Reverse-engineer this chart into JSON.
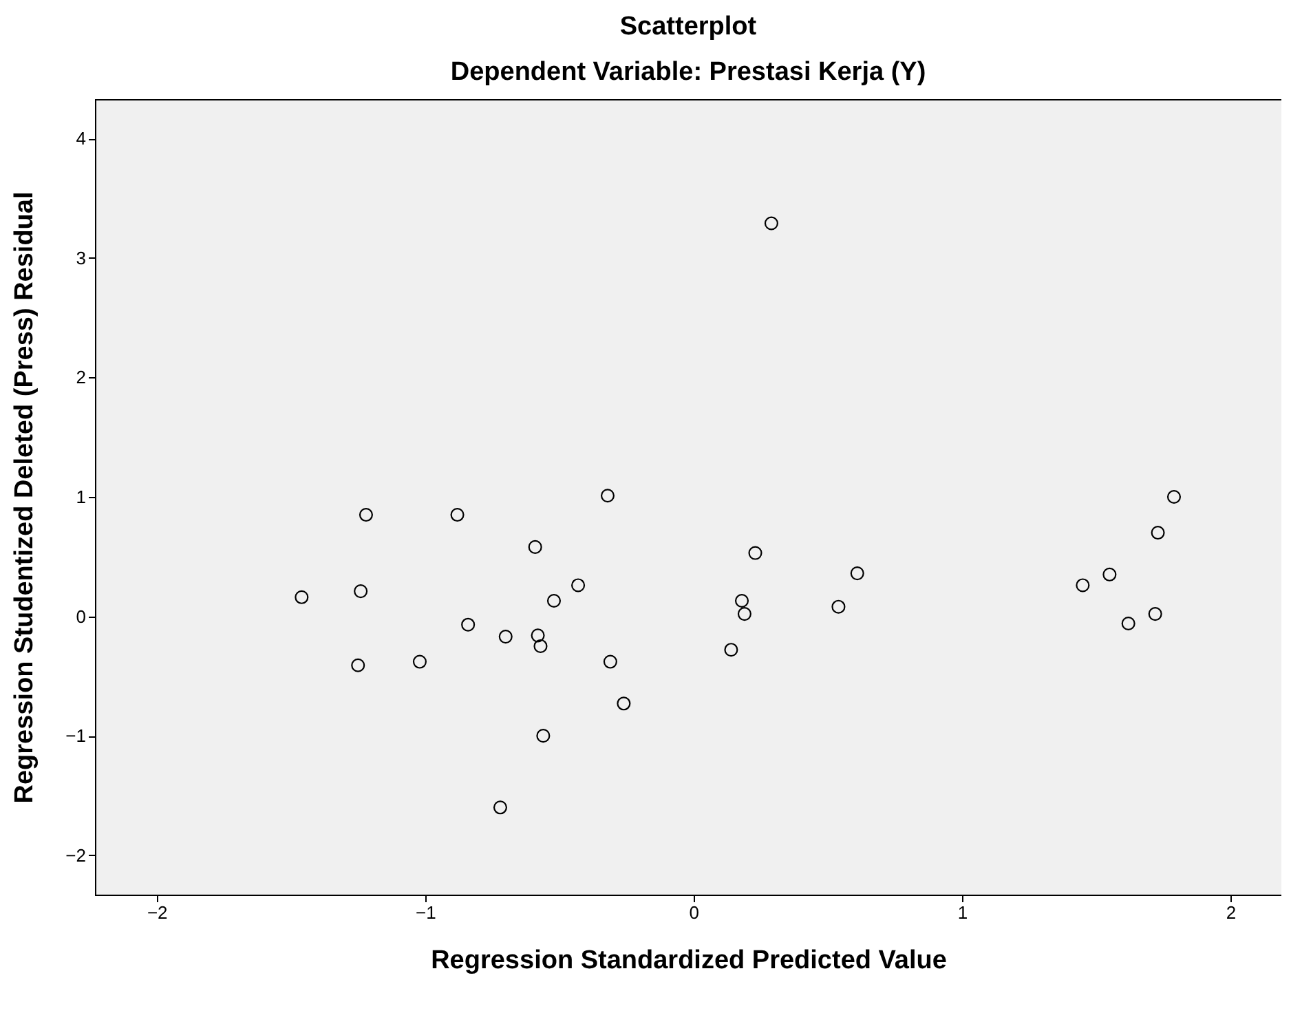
{
  "chart_data": {
    "type": "scatter",
    "title": "Scatterplot",
    "subtitle": "Dependent Variable: Prestasi Kerja (Y)",
    "xlabel": "Regression Standardized Predicted Value",
    "ylabel": "Regression Studentized Deleted (Press) Residual",
    "x": [
      -1.46,
      -1.22,
      -1.24,
      -1.25,
      -1.02,
      -0.88,
      -0.84,
      -0.7,
      -0.59,
      -0.58,
      -0.57,
      -0.52,
      -0.56,
      -0.72,
      -0.43,
      -0.32,
      -0.31,
      -0.26,
      0.14,
      0.18,
      0.19,
      0.23,
      0.29,
      0.54,
      0.61,
      1.45,
      1.55,
      1.62,
      1.72,
      1.73,
      1.79
    ],
    "values": [
      0.16,
      0.85,
      0.21,
      -0.41,
      -0.38,
      0.85,
      -0.07,
      -0.17,
      0.58,
      -0.16,
      -0.25,
      0.13,
      -1.0,
      -1.6,
      0.26,
      1.01,
      -0.38,
      -0.73,
      -0.28,
      0.13,
      0.02,
      0.53,
      3.29,
      0.08,
      0.36,
      0.26,
      0.35,
      -0.06,
      0.02,
      0.7,
      1.0
    ],
    "color": "#000000",
    "marker": "circle",
    "xlim": [
      -2.23,
      2.19
    ],
    "ylim": [
      -2.33,
      4.33
    ],
    "xticks": [
      -2,
      -1,
      0,
      1,
      2
    ],
    "yticks": [
      -2,
      -1,
      0,
      1,
      2,
      3,
      4
    ]
  }
}
